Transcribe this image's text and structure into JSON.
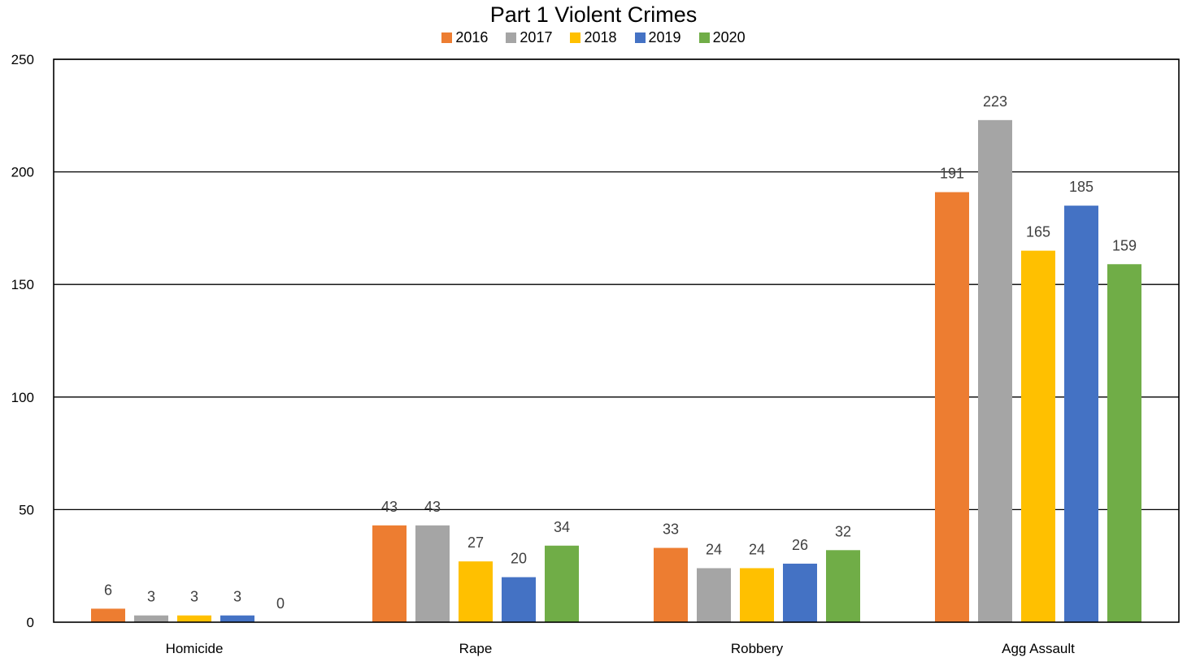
{
  "chart_data": {
    "type": "bar",
    "title": "Part 1 Violent Crimes",
    "categories": [
      "Homicide",
      "Rape",
      "Robbery",
      "Agg Assault"
    ],
    "series": [
      {
        "name": "2016",
        "color": "#ED7D31",
        "values": [
          6,
          43,
          33,
          191
        ]
      },
      {
        "name": "2017",
        "color": "#A5A5A5",
        "values": [
          3,
          43,
          24,
          223
        ]
      },
      {
        "name": "2018",
        "color": "#FFC000",
        "values": [
          3,
          27,
          24,
          165
        ]
      },
      {
        "name": "2019",
        "color": "#4472C4",
        "values": [
          3,
          20,
          26,
          185
        ]
      },
      {
        "name": "2020",
        "color": "#70AD47",
        "values": [
          0,
          34,
          32,
          159
        ]
      }
    ],
    "yticks": [
      "0",
      "50",
      "100",
      "150",
      "200",
      "250"
    ],
    "ylim": [
      0,
      250
    ],
    "grid": true,
    "legend": "top",
    "xlabel": "",
    "ylabel": ""
  }
}
